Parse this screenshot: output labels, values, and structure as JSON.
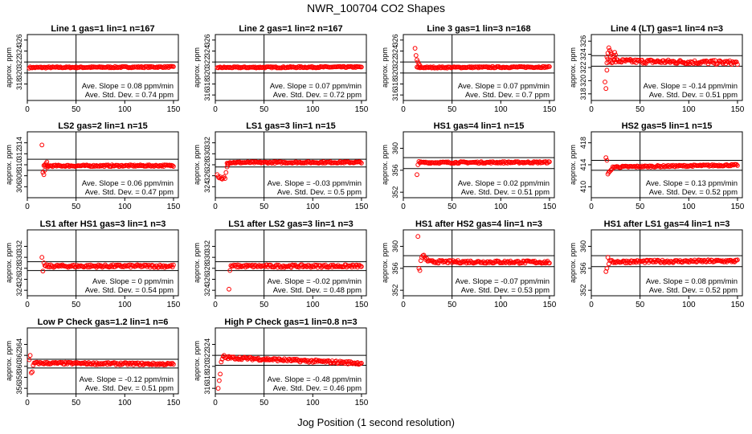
{
  "page": {
    "title": "NWR_100704   CO2 Shapes",
    "xlabel": "Jog Position (1 second resolution)"
  },
  "colors": {
    "points": "#ff0000",
    "axis": "#000000"
  },
  "chart_data": [
    {
      "type": "scatter",
      "title": "Line 1 gas=1 lin=1 n=167",
      "ylabel": "approx. ppm",
      "xlim": [
        0,
        155
      ],
      "ylim": [
        315,
        327
      ],
      "yticks": [
        318,
        320,
        322,
        324,
        326
      ],
      "xticks": [
        0,
        50,
        100,
        150
      ],
      "hlines": [
        322,
        320
      ],
      "slope_text": "Ave. Slope =  0.08  ppm/min",
      "std_text": "Ave. Std. Dev. =  0.74  ppm",
      "base": 321,
      "drift": 0.1,
      "noise": 0.12,
      "x0": 2,
      "head": []
    },
    {
      "type": "scatter",
      "title": "Line 2 gas=1 lin=2 n=167",
      "ylabel": "approx. ppm",
      "xlim": [
        0,
        155
      ],
      "ylim": [
        315,
        327
      ],
      "yticks": [
        316,
        318,
        320,
        322,
        324,
        326
      ],
      "xticks": [
        0,
        50,
        100,
        150
      ],
      "hlines": [
        322,
        320
      ],
      "slope_text": "Ave. Slope =  0.07  ppm/min",
      "std_text": "Ave. Std. Dev. =  0.72  ppm",
      "base": 321,
      "drift": 0.1,
      "noise": 0.12,
      "x0": 2,
      "head": []
    },
    {
      "type": "scatter",
      "title": "Line 3 gas=1 lin=3 n=168",
      "ylabel": "approx. ppm",
      "xlim": [
        0,
        155
      ],
      "ylim": [
        315,
        327
      ],
      "yticks": [
        316,
        318,
        320,
        322,
        324,
        326
      ],
      "xticks": [
        0,
        50,
        100,
        150
      ],
      "hlines": [
        322,
        320
      ],
      "slope_text": "Ave. Slope =  0.07  ppm/min",
      "std_text": "Ave. Std. Dev. =  0.7  ppm",
      "base": 321,
      "drift": 0.1,
      "noise": 0.12,
      "x0": 14,
      "head": [
        [
          12,
          324.5
        ],
        [
          13,
          323.2
        ],
        [
          14,
          322.4
        ],
        [
          15,
          322
        ],
        [
          16,
          321.6
        ],
        [
          17,
          321.4
        ]
      ]
    },
    {
      "type": "scatter",
      "title": "Line 4 (LT) gas=1 lin=4 n=3",
      "ylabel": "approx. ppm",
      "xlim": [
        0,
        155
      ],
      "ylim": [
        317,
        327
      ],
      "yticks": [
        318,
        320,
        322,
        324,
        326
      ],
      "xticks": [
        0,
        50,
        100,
        150
      ],
      "hlines": [
        323.8,
        322.2
      ],
      "slope_text": "Ave. Slope =  -0.14  ppm/min",
      "std_text": "Ave. Std. Dev. =  0.51  ppm",
      "base": 323,
      "drift": -0.3,
      "noise": 0.3,
      "x0": 16,
      "head": [
        [
          14,
          319.8
        ],
        [
          15,
          318.8
        ],
        [
          16,
          321.6
        ],
        [
          16,
          323.6
        ],
        [
          17,
          324.2
        ],
        [
          18,
          325
        ],
        [
          19,
          324.6
        ],
        [
          20,
          324.3
        ],
        [
          21,
          324
        ],
        [
          22,
          323.6
        ],
        [
          23,
          323.8
        ],
        [
          24,
          324.3
        ],
        [
          25,
          323.9
        ]
      ]
    },
    {
      "type": "scatter",
      "title": "LS2 gas=2 lin=1 n=15",
      "ylabel": "approx. ppm",
      "xlim": [
        0,
        155
      ],
      "ylim": [
        304,
        316
      ],
      "yticks": [
        306,
        308,
        310,
        312,
        314
      ],
      "xticks": [
        0,
        50,
        100,
        150
      ],
      "hlines": [
        311,
        309
      ],
      "slope_text": "Ave. Slope =  0.06  ppm/min",
      "std_text": "Ave. Std. Dev. =  0.47  ppm",
      "base": 309.8,
      "drift": 0.05,
      "noise": 0.15,
      "x0": 17,
      "head": [
        [
          15,
          313.6
        ],
        [
          16,
          308.6
        ],
        [
          17,
          308.2
        ],
        [
          18,
          309
        ],
        [
          19,
          310.2
        ],
        [
          20,
          310.5
        ],
        [
          21,
          309.6
        ]
      ]
    },
    {
      "type": "scatter",
      "title": "LS1 gas=3 lin=1 n=15",
      "ylabel": "approx. ppm",
      "xlim": [
        0,
        155
      ],
      "ylim": [
        322,
        334
      ],
      "yticks": [
        324,
        326,
        328,
        330,
        332
      ],
      "xticks": [
        0,
        50,
        100,
        150
      ],
      "hlines": [
        329,
        327.6
      ],
      "slope_text": "Ave. Slope =  -0.03  ppm/min",
      "std_text": "Ave. Std. Dev. =  0.5  ppm",
      "base": 328.4,
      "drift": 0.05,
      "noise": 0.15,
      "x0": 12,
      "head": [
        [
          2,
          326.2
        ],
        [
          3,
          325.8
        ],
        [
          4,
          325.6
        ],
        [
          5,
          325.8
        ],
        [
          6,
          325.5
        ],
        [
          7,
          325.4
        ],
        [
          8,
          325.6
        ],
        [
          9,
          325.8
        ],
        [
          10,
          325.5
        ],
        [
          11,
          326.6
        ],
        [
          12,
          327.6
        ],
        [
          13,
          328
        ]
      ]
    },
    {
      "type": "scatter",
      "title": "HS1 gas=4 lin=1 n=15",
      "ylabel": "approx. ppm",
      "xlim": [
        0,
        155
      ],
      "ylim": [
        351,
        363
      ],
      "yticks": [
        352,
        356,
        360
      ],
      "xticks": [
        0,
        50,
        100,
        150
      ],
      "hlines": [
        358.3,
        356.3
      ],
      "slope_text": "Ave. Slope =  0.02  ppm/min",
      "std_text": "Ave. Std. Dev. =  0.51  ppm",
      "base": 357.4,
      "drift": 0.05,
      "noise": 0.15,
      "x0": 17,
      "head": [
        [
          14,
          355.2
        ],
        [
          15,
          357
        ],
        [
          16,
          357.6
        ]
      ]
    },
    {
      "type": "scatter",
      "title": "HS2 gas=5 lin=1 n=15",
      "ylabel": "approx. ppm",
      "xlim": [
        0,
        155
      ],
      "ylim": [
        408,
        420
      ],
      "yticks": [
        410,
        414,
        418
      ],
      "xticks": [
        0,
        50,
        100,
        150
      ],
      "hlines": [
        414.8,
        413
      ],
      "slope_text": "Ave. Slope =  0.13  ppm/min",
      "std_text": "Ave. Std. Dev. =  0.52  ppm",
      "base": 413.6,
      "drift": 0.4,
      "noise": 0.15,
      "x0": 22,
      "head": [
        [
          15,
          415.3
        ],
        [
          16,
          414.8
        ],
        [
          17,
          412.3
        ],
        [
          18,
          412.6
        ],
        [
          19,
          412.8
        ],
        [
          20,
          413
        ],
        [
          21,
          413.2
        ]
      ]
    },
    {
      "type": "scatter",
      "title": "LS1 after HS1 gas=3 lin=1 n=3",
      "ylabel": "approx. ppm",
      "xlim": [
        0,
        155
      ],
      "ylim": [
        323,
        335
      ],
      "yticks": [
        324,
        326,
        328,
        330,
        332
      ],
      "xticks": [
        0,
        50,
        100,
        150
      ],
      "hlines": [
        329.2,
        327.6
      ],
      "slope_text": "Ave. Slope =  0  ppm/min",
      "std_text": "Ave. Std. Dev. =  0.54  ppm",
      "base": 328.4,
      "drift": 0,
      "noise": 0.25,
      "x0": 18,
      "head": [
        [
          15,
          330
        ],
        [
          16,
          327.5
        ],
        [
          17,
          329
        ]
      ]
    },
    {
      "type": "scatter",
      "title": "LS1 after LS2 gas=3 lin=1 n=3",
      "ylabel": "approx. ppm",
      "xlim": [
        0,
        155
      ],
      "ylim": [
        323,
        335
      ],
      "yticks": [
        324,
        326,
        328,
        330,
        332
      ],
      "xticks": [
        0,
        50,
        100,
        150
      ],
      "hlines": [
        329.2,
        327.6
      ],
      "slope_text": "Ave. Slope =  -0.02  ppm/min",
      "std_text": "Ave. Std. Dev. =  0.48  ppm",
      "base": 328.4,
      "drift": 0,
      "noise": 0.25,
      "x0": 17,
      "head": [
        [
          14,
          324.2
        ],
        [
          15,
          327.6
        ],
        [
          16,
          328.5
        ]
      ]
    },
    {
      "type": "scatter",
      "title": "HS1 after HS2 gas=4 lin=1 n=3",
      "ylabel": "approx. ppm",
      "xlim": [
        0,
        155
      ],
      "ylim": [
        351,
        363
      ],
      "yticks": [
        352,
        356,
        360
      ],
      "xticks": [
        0,
        50,
        100,
        150
      ],
      "hlines": [
        358.3,
        356.3
      ],
      "slope_text": "Ave. Slope =  -0.07  ppm/min",
      "std_text": "Ave. Std. Dev. =  0.53  ppm",
      "base": 357.2,
      "drift": -0.1,
      "noise": 0.25,
      "x0": 26,
      "head": [
        [
          15,
          361.8
        ],
        [
          16,
          356
        ],
        [
          17,
          355.6
        ],
        [
          18,
          357.4
        ],
        [
          19,
          358
        ],
        [
          20,
          358.3
        ],
        [
          21,
          358.4
        ],
        [
          22,
          358
        ],
        [
          23,
          357.6
        ],
        [
          24,
          357.8
        ],
        [
          25,
          357.3
        ]
      ]
    },
    {
      "type": "scatter",
      "title": "HS1 after LS1 gas=4 lin=1 n=3",
      "ylabel": "approx. ppm",
      "xlim": [
        0,
        155
      ],
      "ylim": [
        351,
        363
      ],
      "yticks": [
        352,
        356,
        360
      ],
      "xticks": [
        0,
        50,
        100,
        150
      ],
      "hlines": [
        358.3,
        356.3
      ],
      "slope_text": "Ave. Slope =  0.08  ppm/min",
      "std_text": "Ave. Std. Dev. =  0.52  ppm",
      "base": 357.2,
      "drift": 0.15,
      "noise": 0.25,
      "x0": 19,
      "head": [
        [
          15,
          355.4
        ],
        [
          16,
          356
        ],
        [
          17,
          358
        ],
        [
          18,
          356.8
        ]
      ]
    },
    {
      "type": "scatter",
      "title": "Low P Check gas=1.2 lin=1 n=6",
      "ylabel": "approx. ppm",
      "xlim": [
        0,
        155
      ],
      "ylim": [
        355,
        367
      ],
      "yticks": [
        356,
        358,
        360,
        362,
        364
      ],
      "xticks": [
        0,
        50,
        100,
        150
      ],
      "hlines": [
        361.3,
        359.7
      ],
      "slope_text": "Ave. Slope =  -0.12  ppm/min",
      "std_text": "Ave. Std. Dev. =  0.51  ppm",
      "base": 360.6,
      "drift": -0.2,
      "noise": 0.2,
      "x0": 7,
      "head": [
        [
          2,
          361.2
        ],
        [
          3,
          362
        ],
        [
          4,
          358.8
        ],
        [
          5,
          359
        ],
        [
          6,
          360.2
        ]
      ]
    },
    {
      "type": "scatter",
      "title": "High P Check gas=1 lin=0.8 n=3",
      "ylabel": "approx. ppm",
      "xlim": [
        0,
        155
      ],
      "ylim": [
        315,
        327
      ],
      "yticks": [
        316,
        318,
        320,
        322,
        324
      ],
      "xticks": [
        0,
        50,
        100,
        150
      ],
      "hlines": [
        322,
        320.2
      ],
      "slope_text": "Ave. Slope =  -0.48  ppm/min",
      "std_text": "Ave. Std. Dev. =  0.46  ppm",
      "base": 321.6,
      "drift": -1.1,
      "noise": 0.25,
      "x0": 11,
      "head": [
        [
          3,
          316
        ],
        [
          4,
          317.4
        ],
        [
          5,
          318.6
        ],
        [
          6,
          320.8
        ],
        [
          7,
          321.3
        ],
        [
          8,
          321.8
        ],
        [
          9,
          322
        ],
        [
          10,
          321.6
        ]
      ]
    }
  ]
}
